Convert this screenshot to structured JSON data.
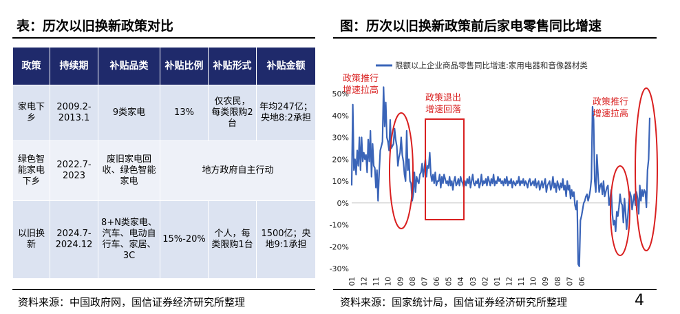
{
  "left_panel": {
    "title": "表：历次以旧换新政策对比",
    "table": {
      "headers": [
        "政策",
        "持续期",
        "补贴品类",
        "补贴比例",
        "补贴形式",
        "补贴金额"
      ],
      "rows": [
        {
          "policy": "家电下乡",
          "period": "2009.2-2013.1",
          "category": "9类家电",
          "ratio": "13%",
          "form": "仅农民，每类限购2台",
          "amount": "年均247亿；央地8:2承担"
        },
        {
          "policy": "绿色智能家电下乡",
          "period": "2022.7-2023",
          "category": "废旧家电回收、绿色智能家电",
          "merged": "地方政府自主行动"
        },
        {
          "policy": "以旧换新",
          "period": "2024.7-2024.12",
          "category": "8+N类家电、汽车、电动自行车、家居、3C",
          "ratio": "15%-20%",
          "form": "个人，每类限购1台",
          "amount": "1500亿；央地9:1承担"
        }
      ]
    },
    "source": "资料来源：中国政府网，国信证券经济研究所整理"
  },
  "right_panel": {
    "title": "图：历次以旧换新政策前后家电零售同比增速",
    "source": "资料来源：国家统计局，国信证券经济研究所整理"
  },
  "page_number": "4",
  "chart_data": {
    "type": "line",
    "legend": "限额以上企业商品零售同比增速:家用电器和音像器材类",
    "legend_position": "top",
    "color": "#3a64b8",
    "y_ticks": [
      "50%",
      "40%",
      "30%",
      "20%",
      "10%",
      "0%",
      "-10%",
      "-20%",
      "-30%"
    ],
    "ylim": [
      -30,
      50
    ],
    "x_ticks": [
      "2007-01",
      "2007-12",
      "2008-11",
      "2009-10",
      "2010-09",
      "2011-08",
      "2012-07",
      "2013-06",
      "2014-05",
      "2015-04",
      "2016-03",
      "2017-02",
      "2018-01",
      "2018-12",
      "2019-11",
      "2020-10",
      "2021-09",
      "2022-08",
      "2023-07",
      "2024-06"
    ],
    "annotations": [
      {
        "text": [
          "政策推行",
          "增速拉高"
        ],
        "shape": "ellipse",
        "color": "#d92020"
      },
      {
        "text": [
          "政策退出",
          "增速回落"
        ],
        "shape": "rectangle",
        "color": "#d92020"
      },
      {
        "text": [
          "政策推行",
          "增速拉高"
        ],
        "shape": "ellipse",
        "color": "#d92020"
      }
    ],
    "series": [
      {
        "x_start": "2007-01",
        "frequency": "monthly",
        "values": [
          8,
          45,
          15,
          20,
          13,
          24,
          17,
          30,
          15,
          30,
          19,
          23,
          20,
          22,
          14,
          29,
          19,
          33,
          12,
          27,
          17,
          16,
          7,
          15,
          1,
          14,
          24,
          26,
          28,
          53,
          35,
          46,
          30,
          28,
          24,
          38,
          25,
          26,
          27,
          34,
          29,
          26,
          17,
          21,
          23,
          30,
          22,
          19,
          13,
          10,
          33,
          15,
          20,
          10,
          9,
          1,
          4,
          14,
          5,
          12,
          10,
          9,
          13,
          14,
          18,
          12,
          16,
          20,
          12,
          17,
          16,
          23,
          13,
          10,
          13,
          9,
          14,
          8,
          10,
          10,
          13,
          7,
          12,
          9,
          13,
          11,
          9,
          10,
          8,
          12,
          8,
          10,
          6,
          10,
          12,
          8,
          9,
          11,
          8,
          12,
          10,
          9,
          7,
          10,
          8,
          11,
          9,
          12,
          7,
          10,
          13,
          9,
          8,
          10,
          9,
          11,
          7,
          9,
          13,
          8,
          10,
          9,
          11,
          8,
          12,
          10,
          8,
          11,
          9,
          13,
          8,
          10,
          9,
          12,
          10,
          11,
          9,
          10,
          8,
          11,
          9,
          12,
          8,
          10,
          9,
          11,
          7,
          10,
          9,
          8,
          10,
          9,
          12,
          8,
          10,
          9,
          11,
          8,
          10,
          9,
          7,
          10,
          11,
          8,
          9,
          10,
          8,
          11,
          7,
          9,
          10,
          6,
          8,
          10,
          7,
          9,
          11,
          5,
          8,
          9,
          10,
          6,
          8,
          12,
          7,
          9,
          5,
          10,
          8,
          6,
          9,
          7,
          11,
          6,
          8,
          3,
          10,
          6,
          8,
          2,
          6,
          3,
          5,
          -1,
          -3,
          1,
          -28,
          -29,
          -8,
          -6,
          -3,
          0,
          1,
          3,
          4,
          1,
          3,
          6,
          11,
          44,
          38,
          10,
          5,
          22,
          13,
          5,
          8,
          9,
          4,
          10,
          3,
          5,
          7,
          8,
          -1,
          2,
          6,
          -5,
          -10,
          -8,
          -13,
          -4,
          -6,
          -2,
          4,
          0,
          -1,
          -9,
          2,
          -4,
          -12,
          -7,
          0,
          5,
          3,
          -3,
          1,
          4,
          -1,
          5,
          2,
          -5,
          8,
          1,
          6,
          3,
          6,
          5,
          -2,
          15,
          20,
          39
        ]
      }
    ]
  }
}
